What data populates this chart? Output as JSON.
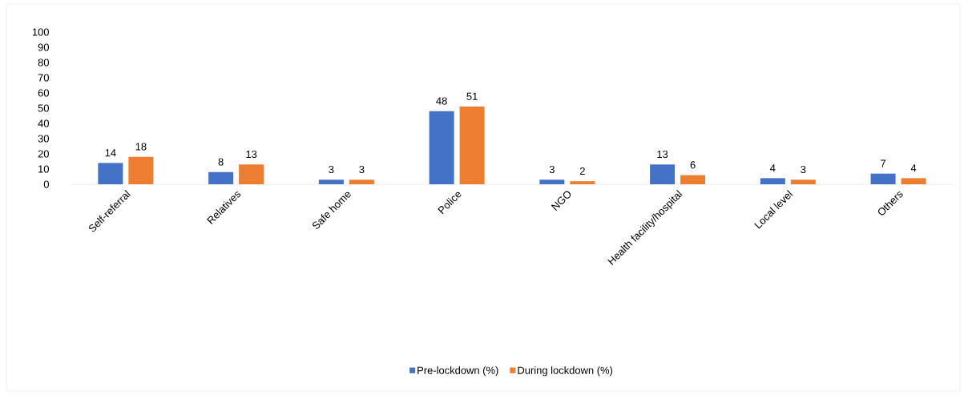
{
  "chart_data": {
    "type": "bar",
    "categories": [
      "Self-referral",
      "Relatives",
      "Safe home",
      "Police",
      "NGO",
      "Health facility/hospital",
      "Local level",
      "Others"
    ],
    "series": [
      {
        "name": "Pre-lockdown (%)",
        "color": "#4472c4",
        "values": [
          14,
          8,
          3,
          48,
          3,
          13,
          4,
          7
        ]
      },
      {
        "name": "During lockdown (%)",
        "color": "#ed7d31",
        "values": [
          18,
          13,
          3,
          51,
          2,
          6,
          3,
          4
        ]
      }
    ],
    "ylim": [
      0,
      100
    ],
    "yticks": [
      0,
      10,
      20,
      30,
      40,
      50,
      60,
      70,
      80,
      90,
      100
    ],
    "data_labels": true,
    "legend": "bottom"
  }
}
